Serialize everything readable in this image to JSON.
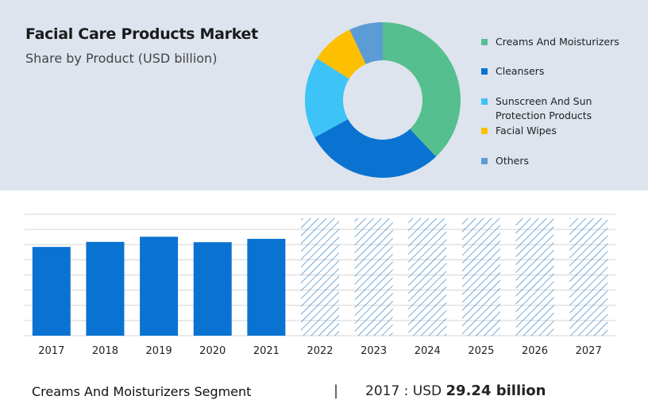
{
  "header": {
    "title": "Facial Care Products Market",
    "subtitle": "Share by Product (USD billion)"
  },
  "chart_data": [
    {
      "type": "pie",
      "variant": "donut",
      "title": "Facial Care Products Market",
      "subtitle": "Share by Product (USD billion)",
      "legend_position": "right",
      "slices": [
        {
          "label": "Creams And Moisturizers",
          "value": 38,
          "color": "#56bf8f"
        },
        {
          "label": "Cleansers",
          "value": 29,
          "color": "#0a73d2"
        },
        {
          "label": "Sunscreen And Sun Protection Products",
          "value": 17,
          "color": "#3ec3f6"
        },
        {
          "label": "Facial Wipes",
          "value": 9,
          "color": "#fcc000"
        },
        {
          "label": "Others",
          "value": 7,
          "color": "#5b9bd6"
        }
      ]
    },
    {
      "type": "bar",
      "categories": [
        "2017",
        "2018",
        "2019",
        "2020",
        "2021",
        "2022",
        "2023",
        "2024",
        "2025",
        "2026",
        "2027"
      ],
      "values": [
        29.24,
        30.9,
        32.6,
        30.8,
        31.9,
        null,
        null,
        null,
        null,
        null,
        null
      ],
      "forecast_years": [
        "2022",
        "2023",
        "2024",
        "2025",
        "2026",
        "2027"
      ],
      "ylim": [
        0,
        40
      ],
      "grid": true,
      "actual_color": "#0a73d2",
      "forecast_pattern_color": "#2b7fc4"
    }
  ],
  "footer": {
    "segment_label": "Creams And Moisturizers Segment",
    "separator": "|",
    "value_prefix": "2017 : USD",
    "value_bold": "29.24 billion"
  }
}
